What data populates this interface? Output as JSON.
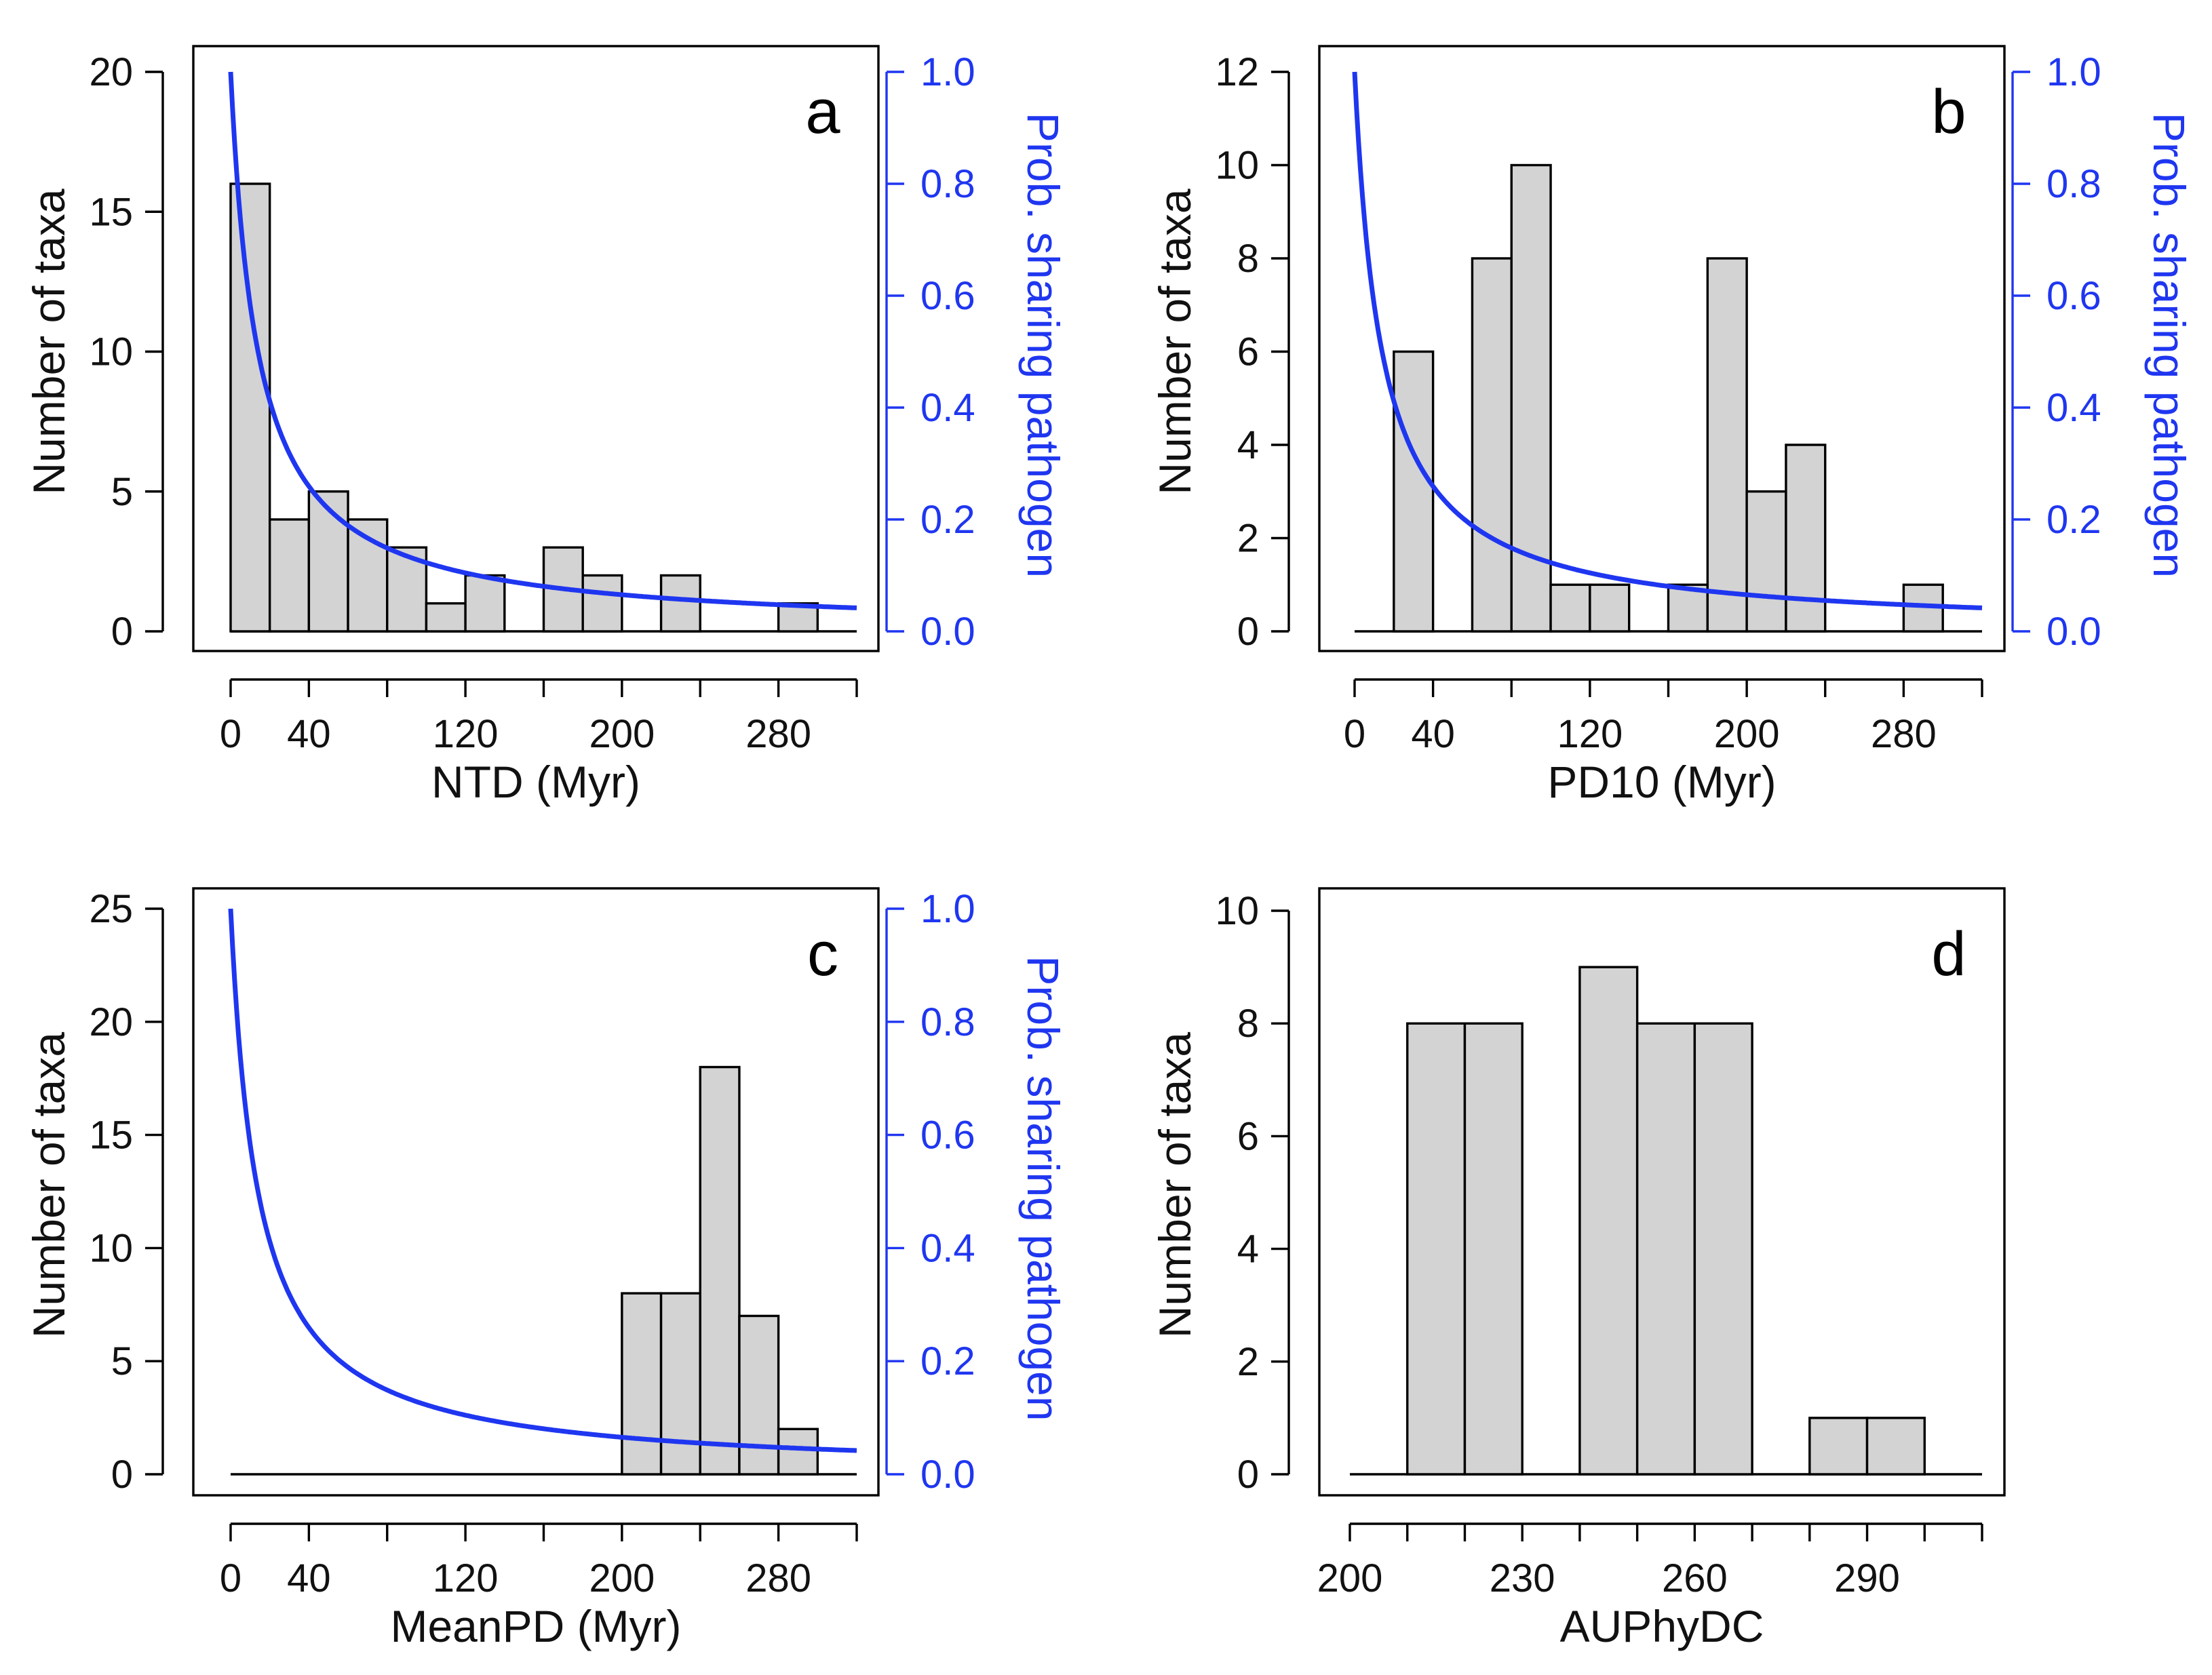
{
  "figure": {
    "label_color_secondary": "#1f36f0",
    "bar_color": "#d3d3d3"
  },
  "chart_data": [
    {
      "panel": "a",
      "type": "bar",
      "xlabel": "NTD (Myr)",
      "ylabel": "Number of taxa",
      "y2label": "Prob. sharing pathogen",
      "xlim": [
        0,
        320
      ],
      "xticks": [
        0,
        40,
        80,
        120,
        160,
        200,
        240,
        280,
        320
      ],
      "xticklabels": [
        "0",
        "40",
        "120",
        "200",
        "280"
      ],
      "xticklabel_values": [
        0,
        40,
        120,
        200,
        280
      ],
      "ylim": [
        0,
        20
      ],
      "yticks": [
        0,
        5,
        10,
        15,
        20
      ],
      "y2lim": [
        0,
        1
      ],
      "y2ticks": [
        "0.0",
        "0.2",
        "0.4",
        "0.6",
        "0.8",
        "1.0"
      ],
      "bin_width": 20,
      "bin_starts": [
        0,
        20,
        40,
        60,
        80,
        100,
        120,
        140,
        160,
        180,
        200,
        220,
        240,
        260,
        280,
        300
      ],
      "values": [
        16,
        4,
        5,
        4,
        3,
        1,
        2,
        0,
        3,
        2,
        0,
        2,
        0,
        0,
        1,
        0
      ],
      "curve": {
        "name": "Prob. sharing pathogen",
        "color": "#1f36f0",
        "p0": 1.0,
        "x_half": 14
      }
    },
    {
      "panel": "b",
      "type": "bar",
      "xlabel": "PD10 (Myr)",
      "ylabel": "Number of taxa",
      "y2label": "Prob. sharing pathogen",
      "xlim": [
        0,
        320
      ],
      "xticks": [
        0,
        40,
        80,
        120,
        160,
        200,
        240,
        280,
        320
      ],
      "xticklabels": [
        "0",
        "40",
        "120",
        "200",
        "280"
      ],
      "xticklabel_values": [
        0,
        40,
        120,
        200,
        280
      ],
      "ylim": [
        0,
        12
      ],
      "yticks": [
        0,
        2,
        4,
        6,
        8,
        10,
        12
      ],
      "y2lim": [
        0,
        1
      ],
      "y2ticks": [
        "0.0",
        "0.2",
        "0.4",
        "0.6",
        "0.8",
        "1.0"
      ],
      "bin_width": 20,
      "bin_starts": [
        0,
        20,
        40,
        60,
        80,
        100,
        120,
        140,
        160,
        180,
        200,
        220,
        240,
        260,
        280,
        300
      ],
      "values": [
        0,
        6,
        0,
        8,
        10,
        1,
        1,
        0,
        1,
        8,
        3,
        4,
        0,
        0,
        1,
        0
      ],
      "curve": {
        "name": "Prob. sharing pathogen",
        "color": "#1f36f0",
        "p0": 1.0,
        "x_half": 14
      }
    },
    {
      "panel": "c",
      "type": "bar",
      "xlabel": "MeanPD (Myr)",
      "ylabel": "Number of taxa",
      "y2label": "Prob. sharing pathogen",
      "xlim": [
        0,
        320
      ],
      "xticks": [
        0,
        40,
        80,
        120,
        160,
        200,
        240,
        280,
        320
      ],
      "xticklabels": [
        "0",
        "40",
        "120",
        "200",
        "280"
      ],
      "xticklabel_values": [
        0,
        40,
        120,
        200,
        280
      ],
      "ylim": [
        0,
        25
      ],
      "yticks": [
        0,
        5,
        10,
        15,
        20,
        25
      ],
      "y2lim": [
        0,
        1
      ],
      "y2ticks": [
        "0.0",
        "0.2",
        "0.4",
        "0.6",
        "0.8",
        "1.0"
      ],
      "bin_width": 20,
      "bin_starts": [
        0,
        20,
        40,
        60,
        80,
        100,
        120,
        140,
        160,
        180,
        200,
        220,
        240,
        260,
        280,
        300
      ],
      "values": [
        0,
        0,
        0,
        0,
        0,
        0,
        0,
        0,
        0,
        0,
        8,
        8,
        18,
        7,
        2,
        0
      ],
      "curve": {
        "name": "Prob. sharing pathogen",
        "color": "#1f36f0",
        "p0": 1.0,
        "x_half": 14
      }
    },
    {
      "panel": "d",
      "type": "bar",
      "xlabel": "AUPhyDC",
      "ylabel": "Number of taxa",
      "y2label": "",
      "xlim": [
        200,
        310
      ],
      "xticks": [
        200,
        210,
        220,
        230,
        240,
        250,
        260,
        270,
        280,
        290,
        300,
        310
      ],
      "xticklabels": [
        "200",
        "230",
        "260",
        "290"
      ],
      "xticklabel_values": [
        200,
        230,
        260,
        290
      ],
      "ylim": [
        0,
        10
      ],
      "yticks": [
        0,
        2,
        4,
        6,
        8,
        10
      ],
      "bin_width": 10,
      "bin_starts": [
        200,
        210,
        220,
        230,
        240,
        250,
        260,
        270,
        280,
        290,
        300
      ],
      "values": [
        0,
        8,
        8,
        0,
        9,
        8,
        8,
        0,
        1,
        1,
        0
      ]
    }
  ]
}
